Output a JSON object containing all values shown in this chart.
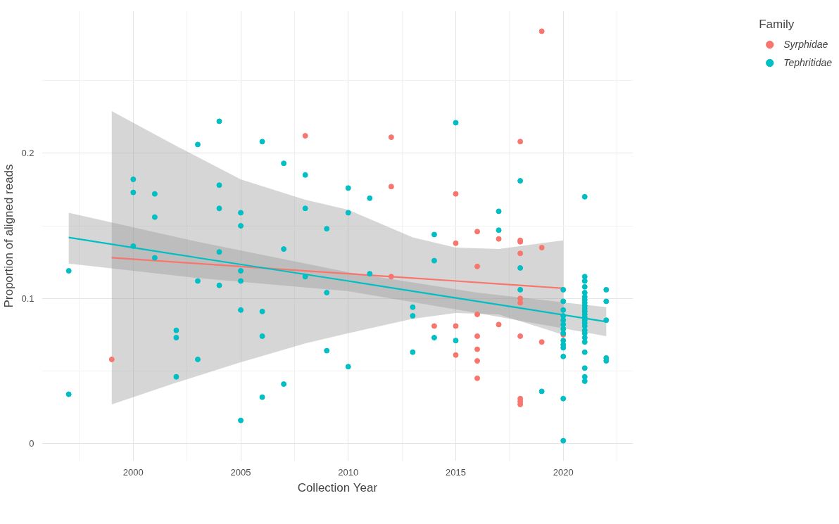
{
  "chart_data": {
    "type": "scatter",
    "xlabel": "Collection Year",
    "ylabel": "Proportion of aligned reads",
    "legend_title": "Family",
    "legend": "right",
    "grid": true,
    "marker": "circle",
    "xlim": [
      1995.75,
      2023.25
    ],
    "xticks": [
      2000,
      2005,
      2010,
      2015,
      2020
    ],
    "ylim": [
      -0.012,
      0.298
    ],
    "yticks": [
      0.0,
      0.1,
      0.2
    ],
    "series": [
      {
        "type": "line",
        "marker": "none",
        "color": "#f8766d",
        "x": [
          1999,
          2002,
          2005,
          2008,
          2010,
          2013,
          2015,
          2017,
          2020
        ],
        "values": [
          0.128,
          0.125,
          0.122,
          0.119,
          0.117,
          0.114,
          0.112,
          0.11,
          0.107
        ],
        "lower": [
          0.027,
          0.042,
          0.056,
          0.069,
          0.076,
          0.086,
          0.09,
          0.089,
          0.075
        ],
        "upper": [
          0.229,
          0.205,
          0.182,
          0.168,
          0.161,
          0.142,
          0.135,
          0.134,
          0.14
        ]
      },
      {
        "type": "line",
        "marker": "none",
        "color": "#00bfc4",
        "x": [
          1997,
          2003,
          2010,
          2016,
          2022
        ],
        "values": [
          0.142,
          0.128,
          0.112,
          0.098,
          0.084
        ],
        "lower": [
          0.124,
          0.114,
          0.105,
          0.09,
          0.074
        ],
        "upper": [
          0.159,
          0.139,
          0.118,
          0.104,
          0.094
        ]
      },
      {
        "name": "Syrphidae",
        "color": "#f8766d",
        "x": [
          1999,
          2008,
          2012,
          2012,
          2012,
          2014,
          2015,
          2015,
          2015,
          2015,
          2016,
          2016,
          2016,
          2016,
          2016,
          2016,
          2016,
          2017,
          2017,
          2018,
          2018,
          2018,
          2018,
          2018,
          2018,
          2018,
          2018,
          2018,
          2018,
          2019,
          2019,
          2019,
          2020
        ],
        "values": [
          0.058,
          0.212,
          0.211,
          0.177,
          0.115,
          0.081,
          0.172,
          0.138,
          0.081,
          0.061,
          0.146,
          0.122,
          0.089,
          0.074,
          0.065,
          0.057,
          0.045,
          0.141,
          0.082,
          0.208,
          0.14,
          0.139,
          0.131,
          0.1,
          0.097,
          0.074,
          0.031,
          0.029,
          0.027,
          0.284,
          0.135,
          0.07,
          0.075
        ]
      },
      {
        "name": "Tephritidae",
        "color": "#00bfc4",
        "x": [
          1997,
          1997,
          2000,
          2000,
          2000,
          2001,
          2001,
          2001,
          2002,
          2002,
          2002,
          2003,
          2003,
          2003,
          2004,
          2004,
          2004,
          2004,
          2004,
          2005,
          2005,
          2005,
          2005,
          2005,
          2005,
          2006,
          2006,
          2006,
          2006,
          2007,
          2007,
          2007,
          2008,
          2008,
          2008,
          2009,
          2009,
          2009,
          2010,
          2010,
          2010,
          2011,
          2011,
          2013,
          2013,
          2013,
          2014,
          2014,
          2014,
          2015,
          2015,
          2017,
          2017,
          2018,
          2018,
          2018,
          2019,
          2020,
          2020,
          2020,
          2020,
          2020,
          2020,
          2020,
          2020,
          2020,
          2020,
          2020,
          2020,
          2020,
          2020,
          2021,
          2021,
          2021,
          2021,
          2021,
          2021,
          2021,
          2021,
          2021,
          2021,
          2021,
          2021,
          2021,
          2021,
          2021,
          2021,
          2021,
          2021,
          2021,
          2021,
          2021,
          2021,
          2021,
          2021,
          2022,
          2022,
          2022,
          2022,
          2022
        ],
        "values": [
          0.119,
          0.034,
          0.182,
          0.173,
          0.136,
          0.172,
          0.156,
          0.128,
          0.078,
          0.073,
          0.046,
          0.206,
          0.112,
          0.058,
          0.222,
          0.178,
          0.162,
          0.132,
          0.109,
          0.159,
          0.15,
          0.119,
          0.112,
          0.092,
          0.016,
          0.208,
          0.091,
          0.074,
          0.032,
          0.193,
          0.134,
          0.041,
          0.185,
          0.162,
          0.115,
          0.148,
          0.104,
          0.064,
          0.176,
          0.159,
          0.053,
          0.169,
          0.117,
          0.094,
          0.088,
          0.063,
          0.144,
          0.126,
          0.073,
          0.221,
          0.071,
          0.16,
          0.147,
          0.181,
          0.121,
          0.106,
          0.036,
          0.106,
          0.098,
          0.092,
          0.088,
          0.085,
          0.082,
          0.079,
          0.076,
          0.071,
          0.068,
          0.066,
          0.06,
          0.031,
          0.002,
          0.17,
          0.115,
          0.112,
          0.108,
          0.104,
          0.101,
          0.099,
          0.097,
          0.095,
          0.093,
          0.091,
          0.089,
          0.087,
          0.085,
          0.083,
          0.081,
          0.078,
          0.076,
          0.073,
          0.07,
          0.063,
          0.052,
          0.046,
          0.043,
          0.106,
          0.098,
          0.085,
          0.059,
          0.057
        ]
      }
    ]
  }
}
